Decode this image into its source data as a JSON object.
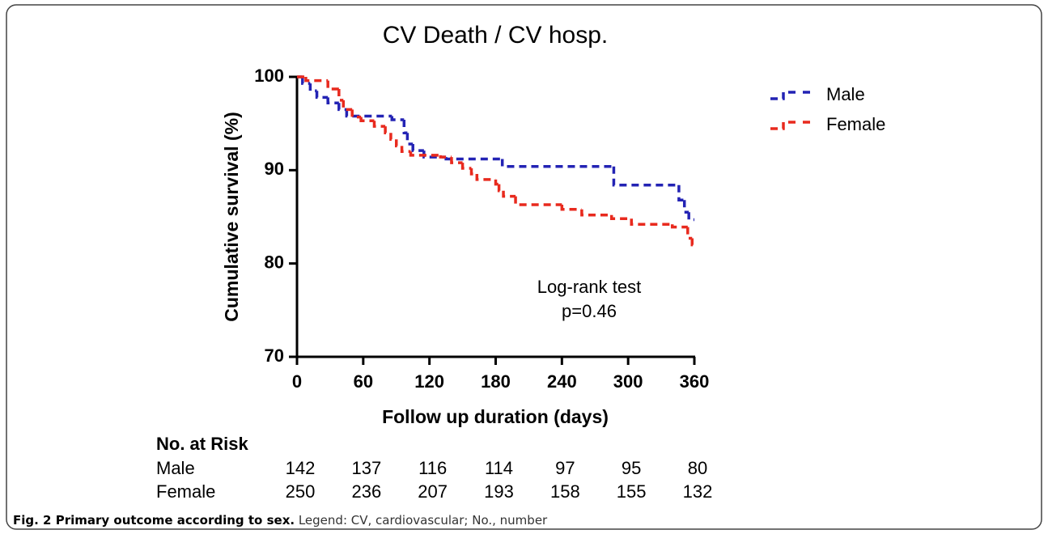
{
  "chart_data": {
    "type": "step",
    "title": "CV Death / CV hosp.",
    "xlabel": "Follow up duration (days)",
    "ylabel": "Cumulative survival (%)",
    "xlim": [
      0,
      360
    ],
    "xticks": [
      0,
      60,
      120,
      180,
      240,
      300,
      360
    ],
    "ylim": [
      70,
      100
    ],
    "yticks": [
      70,
      80,
      90,
      100
    ],
    "legend": "upper right",
    "series": [
      {
        "name": "Male",
        "color": "#2323b4",
        "x": [
          0,
          5,
          12,
          18,
          28,
          38,
          45,
          86,
          97,
          100,
          105,
          115,
          135,
          186,
          287,
          346,
          351,
          355,
          360
        ],
        "y": [
          100,
          99.3,
          98.5,
          97.8,
          97.2,
          96.5,
          95.8,
          95.4,
          94.0,
          92.8,
          92.1,
          91.4,
          91.2,
          90.4,
          88.4,
          86.8,
          85.5,
          84.7,
          84.7
        ]
      },
      {
        "name": "Female",
        "color": "#e82a1e",
        "x": [
          0,
          8,
          28,
          38,
          42,
          50,
          58,
          70,
          80,
          85,
          90,
          95,
          103,
          130,
          140,
          150,
          158,
          163,
          180,
          183,
          187,
          198,
          240,
          258,
          285,
          303,
          340,
          354,
          358,
          360
        ],
        "y": [
          100,
          99.6,
          98.7,
          97.5,
          96.5,
          95.7,
          95.3,
          94.7,
          94.0,
          93.3,
          92.6,
          92.0,
          91.6,
          91.4,
          90.8,
          90.2,
          89.6,
          89.0,
          88.5,
          87.8,
          87.2,
          86.3,
          85.8,
          85.2,
          84.8,
          84.2,
          83.9,
          82.7,
          82.0,
          82.0
        ]
      }
    ],
    "annotations": [
      "Log-rank test",
      "p=0.46"
    ],
    "risk_table": {
      "title": "No. at Risk",
      "rows": [
        {
          "name": "Male",
          "values": [
            142,
            137,
            116,
            114,
            97,
            95,
            80
          ]
        },
        {
          "name": "Female",
          "values": [
            250,
            236,
            207,
            193,
            158,
            155,
            132
          ]
        }
      ]
    },
    "caption": {
      "bold": "Fig. 2 Primary outcome according to sex.",
      "text": "Legend: CV, cardiovascular; No., number"
    }
  }
}
